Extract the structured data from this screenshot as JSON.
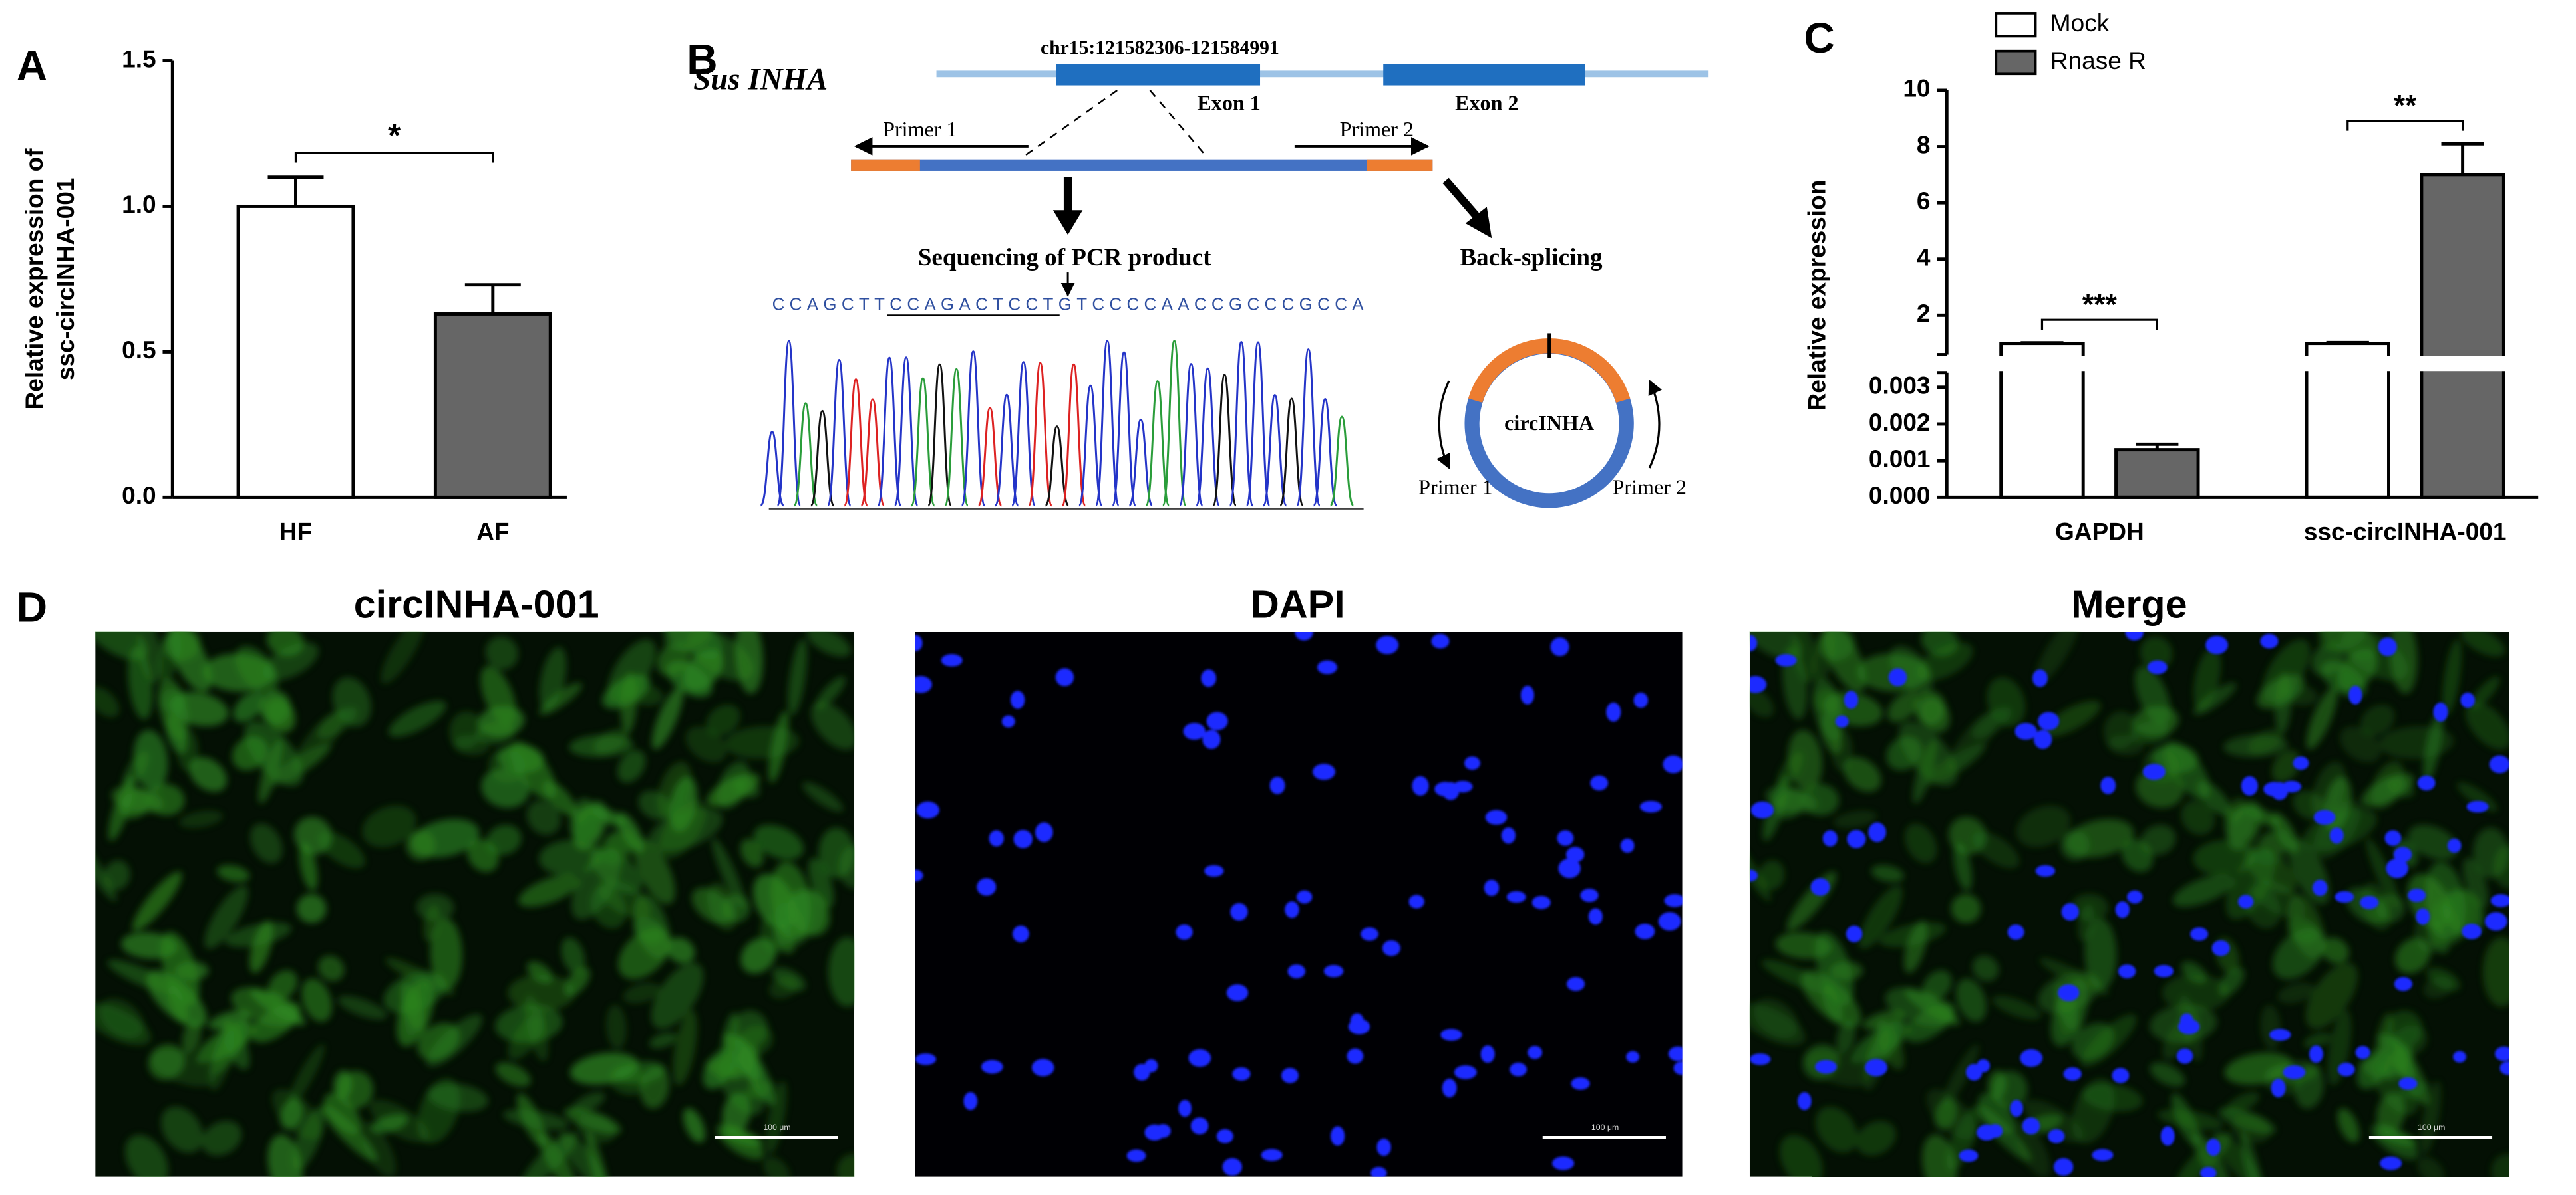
{
  "panel_labels": [
    "A",
    "B",
    "C",
    "D"
  ],
  "chart_data": [
    {
      "type": "bar",
      "y_label": [
        "Relative expression of",
        "ssc-circINHA-001"
      ],
      "categories": [
        "HF",
        "AF"
      ],
      "values": [
        1.0,
        0.63
      ],
      "errors": [
        0.1,
        0.1
      ],
      "colors": [
        "#ffffff",
        "#666666"
      ],
      "ylim": [
        0,
        1.5
      ],
      "yticks": [
        {
          "value": 0,
          "label": "0.0"
        },
        0.5,
        {
          "value": 1,
          "label": "1.0"
        },
        1.5
      ],
      "annotations": [
        "*"
      ]
    },
    {
      "type": "broken-bar",
      "y_label": "Relative expression",
      "categories": [
        "GAPDH",
        "ssc-circINHA-001"
      ],
      "series": [
        {
          "name": "Mock",
          "color": "#ffffff",
          "values": [
            1.0,
            1.0
          ],
          "errors": [
            0.02,
            0.03
          ]
        },
        {
          "name": "Rnase R",
          "color": "#666666",
          "values": [
            0.0013,
            7.0
          ],
          "errors": [
            0.00015,
            1.1
          ]
        }
      ],
      "ylim_lower": [
        0,
        0.0034
      ],
      "yticks_lower": [
        {
          "value": 0,
          "label": "0.000"
        },
        {
          "value": 0.001,
          "label": "0.001"
        },
        {
          "value": 0.002,
          "label": "0.002"
        },
        {
          "value": 0.003,
          "label": "0.003"
        }
      ],
      "ylim_upper": [
        0.6,
        10
      ],
      "yticks_upper": [
        2,
        4,
        6,
        8,
        10
      ],
      "legend": "top-left",
      "annotations": [
        "***",
        "**"
      ]
    }
  ],
  "diagram": {
    "gene": "Sus INHA",
    "locus": "chr15:121582306-121584991",
    "exons": [
      "Exon 1",
      "Exon 2"
    ],
    "primers": [
      "Primer 1",
      "Primer 2"
    ],
    "sequencing": "Sequencing of PCR product",
    "back_splicing": "Back-splicing",
    "sequence": "CCAGCTTCCAGACTCCTGTCCCCAACCGCCCGCCA",
    "circle": "circINHA",
    "circle_primers": [
      "Primer 1",
      "Primer 2"
    ]
  },
  "images": {
    "titles": [
      "circINHA-001",
      "DAPI",
      "Merge"
    ],
    "scale_bar": "100 μm"
  }
}
